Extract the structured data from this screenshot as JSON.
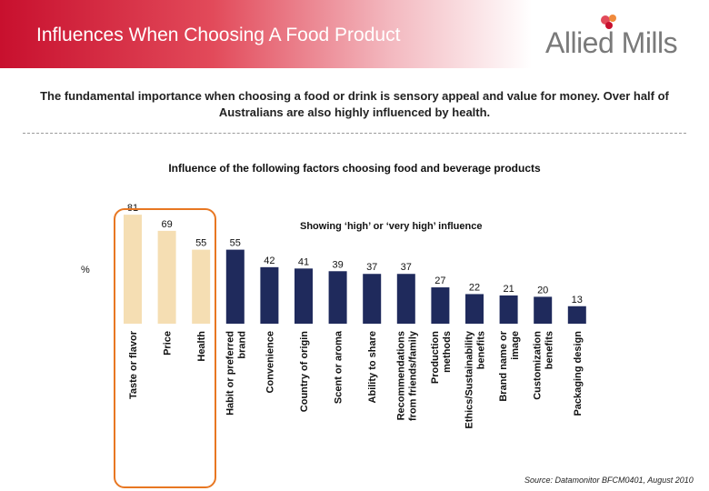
{
  "header": {
    "title": "Influences When Choosing A Food Product",
    "brand": "Allied Mills"
  },
  "summary": "The fundamental importance when choosing a food or drink is sensory appeal and value for money. Over half of Australians are also highly influenced by health.",
  "source": "Source: Datamonitor BFCM0401, August 2010",
  "colors": {
    "header_red": "#c8102e",
    "highlight_bar": "#f5deb3",
    "regular_bar": "#1f2a5c",
    "highlight_box": "#e87722"
  },
  "chart_data": {
    "type": "bar",
    "title": "Influence of the following factors choosing food and beverage products",
    "subtitle": "Showing ‘high’ or ‘very high’ influence",
    "ylabel": "%",
    "ylim": [
      0,
      100
    ],
    "grid": false,
    "categories": [
      "Taste or flavor",
      "Price",
      "Health",
      "Habit or preferred brand",
      "Convenience",
      "Country of origin",
      "Scent or aroma",
      "Ability to share",
      "Recommendations from friends/family",
      "Production methods",
      "Ethics/Sustainability benefits",
      "Brand name or image",
      "Customization benefits",
      "Packaging design"
    ],
    "values": [
      81,
      69,
      55,
      55,
      42,
      41,
      39,
      37,
      37,
      27,
      22,
      21,
      20,
      13
    ],
    "highlighted_categories": [
      "Taste or flavor",
      "Price",
      "Health"
    ]
  }
}
